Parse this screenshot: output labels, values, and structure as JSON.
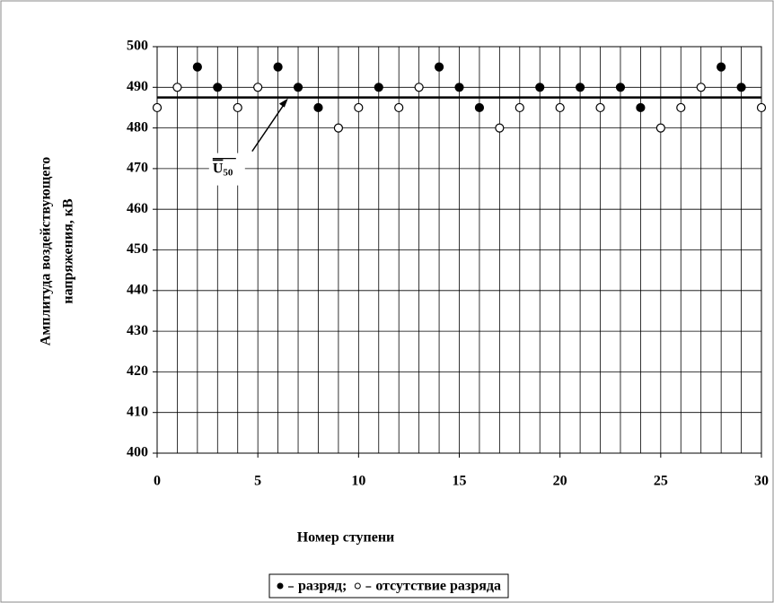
{
  "chart_data": {
    "type": "scatter",
    "xlabel": "Номер ступени",
    "ylabel": [
      "Амплитуда воздействующего",
      "напряжения, кВ"
    ],
    "xlim": [
      0,
      30
    ],
    "ylim": [
      400,
      500
    ],
    "xticks": [
      0,
      5,
      10,
      15,
      20,
      25,
      30
    ],
    "yticks": [
      400,
      410,
      420,
      430,
      440,
      450,
      460,
      470,
      480,
      490,
      500
    ],
    "grid": true,
    "x_grid_step": 1,
    "legend": "bottom",
    "legend_separator": ";",
    "series": [
      {
        "name": "разряд",
        "color": "#000000",
        "marker": "filled",
        "x": [
          2,
          3,
          6,
          7,
          8,
          11,
          14,
          15,
          16,
          19,
          21,
          23,
          24,
          28,
          29
        ],
        "values": [
          495,
          490,
          495,
          490,
          485,
          490,
          495,
          490,
          485,
          490,
          490,
          490,
          485,
          495,
          490
        ]
      },
      {
        "name": "отсутствие разряда",
        "color": "#000000",
        "marker": "open",
        "x": [
          0,
          1,
          4,
          5,
          9,
          10,
          12,
          13,
          17,
          18,
          20,
          22,
          25,
          26,
          27,
          30
        ],
        "values": [
          485,
          490,
          485,
          490,
          480,
          485,
          485,
          490,
          480,
          485,
          485,
          485,
          480,
          485,
          490,
          485
        ]
      }
    ],
    "hline": {
      "value": 487.5,
      "label": "U",
      "label_sub": "50",
      "label_x": 6.5
    }
  }
}
